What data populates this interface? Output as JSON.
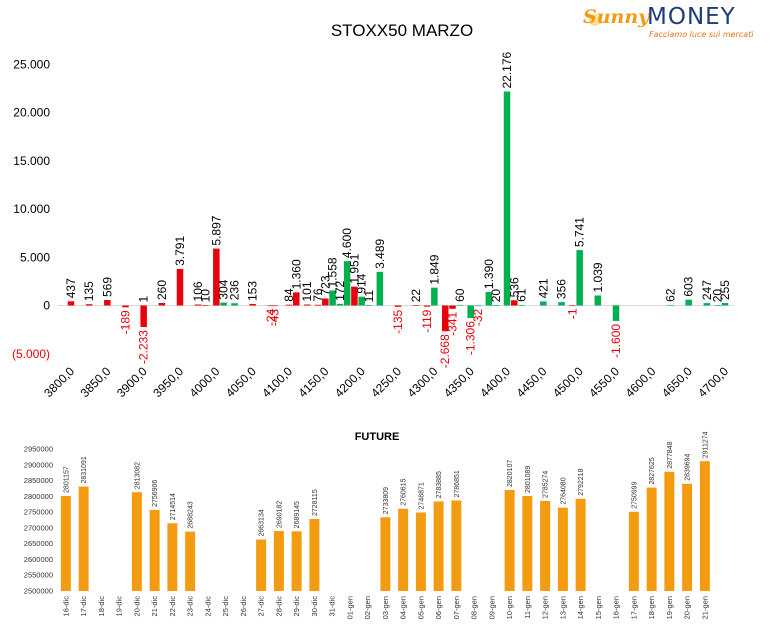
{
  "brand": {
    "name_part1": "Sunny",
    "name_part2": "MONEY",
    "tagline": "Facciamo luce sui mercati",
    "colors": {
      "sun": "#f39c12",
      "money": "#1f3b7a",
      "tagline": "#e2731d"
    }
  },
  "chart_data": [
    {
      "type": "bar",
      "title": "STOXX50 MARZO",
      "xlabel": "",
      "ylabel": "",
      "ylim": [
        -5000,
        25000
      ],
      "y_ticks": [
        "(5.000)",
        "0",
        "5.000",
        "10.000",
        "15.000",
        "20.000",
        "25.000"
      ],
      "y_tick_values": [
        -5000,
        0,
        5000,
        10000,
        15000,
        20000,
        25000
      ],
      "x_range": [
        3800,
        4700
      ],
      "x_ticks": [
        "3800,0",
        "3850,0",
        "3900,0",
        "3950,0",
        "4000,0",
        "4050,0",
        "4100,0",
        "4150,0",
        "4200,0",
        "4250,0",
        "4300,0",
        "4350,0",
        "4400,0",
        "4450,0",
        "4500,0",
        "4550,0",
        "4600,0",
        "4650,0",
        "4700,0"
      ],
      "x_tick_values": [
        3800,
        3850,
        3900,
        3950,
        4000,
        4050,
        4100,
        4150,
        4200,
        4250,
        4300,
        4350,
        4400,
        4450,
        4500,
        4550,
        4600,
        4650,
        4700
      ],
      "grid": false,
      "legend": "none",
      "colors": {
        "call": "#e8000b",
        "put": "#00b050",
        "negative_label": "#e8000b",
        "label": "#000000"
      },
      "series": [
        {
          "color": "#e8000b",
          "values": [
            {
              "x": 3800,
              "y": 437,
              "label": "437"
            },
            {
              "x": 3825,
              "y": 135,
              "label": "135"
            },
            {
              "x": 3850,
              "y": 569,
              "label": "569"
            },
            {
              "x": 3875,
              "y": -189,
              "label": "-189"
            },
            {
              "x": 3900,
              "y": 1,
              "label": "1"
            },
            {
              "x": 3900,
              "y": -2233,
              "label": "-2.233"
            },
            {
              "x": 3925,
              "y": 260,
              "label": "260"
            },
            {
              "x": 3950,
              "y": 3791,
              "label": "3.791"
            },
            {
              "x": 3975,
              "y": 106,
              "label": "106"
            },
            {
              "x": 3985,
              "y": 10,
              "label": "10"
            },
            {
              "x": 4000,
              "y": 5897,
              "label": "5.897"
            },
            {
              "x": 4050,
              "y": 153,
              "label": "153"
            },
            {
              "x": 4075,
              "y": -24,
              "label": "-24"
            },
            {
              "x": 4080,
              "y": -43,
              "label": "-43"
            },
            {
              "x": 4100,
              "y": 84,
              "label": "84"
            },
            {
              "x": 4110,
              "y": 1360,
              "label": "1.360"
            },
            {
              "x": 4125,
              "y": 101,
              "label": "101"
            },
            {
              "x": 4140,
              "y": 76,
              "label": "76"
            },
            {
              "x": 4150,
              "y": 723,
              "label": "723"
            },
            {
              "x": 4190,
              "y": 1951,
              "label": "1.951"
            },
            {
              "x": 4250,
              "y": -135,
              "label": "-135"
            },
            {
              "x": 4275,
              "y": 22,
              "label": "22"
            },
            {
              "x": 4290,
              "y": -119,
              "label": "-119"
            },
            {
              "x": 4315,
              "y": -2668,
              "label": "-2.668"
            },
            {
              "x": 4325,
              "y": -341,
              "label": "-341"
            },
            {
              "x": 4410,
              "y": 536,
              "label": "536"
            },
            {
              "x": 4490,
              "y": -1,
              "label": "-1"
            }
          ]
        },
        {
          "color": "#00b050",
          "values": [
            {
              "x": 4010,
              "y": 304,
              "label": "304"
            },
            {
              "x": 4025,
              "y": 236,
              "label": "236"
            },
            {
              "x": 4160,
              "y": 1558,
              "label": "1.558"
            },
            {
              "x": 4170,
              "y": 172,
              "label": "172"
            },
            {
              "x": 4180,
              "y": 4600,
              "label": "4.600"
            },
            {
              "x": 4200,
              "y": 914,
              "label": "914"
            },
            {
              "x": 4210,
              "y": 11,
              "label": "11"
            },
            {
              "x": 4225,
              "y": 3489,
              "label": "3.489"
            },
            {
              "x": 4300,
              "y": 1849,
              "label": "1.849"
            },
            {
              "x": 4335,
              "y": 60,
              "label": "60"
            },
            {
              "x": 4350,
              "y": -1306,
              "label": "-1.306"
            },
            {
              "x": 4360,
              "y": -32,
              "label": "-32"
            },
            {
              "x": 4375,
              "y": 1390,
              "label": "1.390"
            },
            {
              "x": 4385,
              "y": 20,
              "label": "20"
            },
            {
              "x": 4400,
              "y": 22176,
              "label": "22.176"
            },
            {
              "x": 4420,
              "y": 61,
              "label": "61"
            },
            {
              "x": 4450,
              "y": 421,
              "label": "421"
            },
            {
              "x": 4475,
              "y": 356,
              "label": "356"
            },
            {
              "x": 4500,
              "y": 5741,
              "label": "5.741"
            },
            {
              "x": 4525,
              "y": 1039,
              "label": "1.039"
            },
            {
              "x": 4550,
              "y": -1600,
              "label": "-1.600"
            },
            {
              "x": 4625,
              "y": 62,
              "label": "62"
            },
            {
              "x": 4650,
              "y": 603,
              "label": "603"
            },
            {
              "x": 4675,
              "y": 247,
              "label": "247"
            },
            {
              "x": 4690,
              "y": 20,
              "label": "20"
            },
            {
              "x": 4700,
              "y": 255,
              "label": "255"
            }
          ]
        }
      ]
    },
    {
      "type": "bar",
      "title": "FUTURE",
      "xlabel": "",
      "ylabel": "",
      "ylim": [
        2500000,
        2950000
      ],
      "y_ticks": [
        "2500000",
        "2550000",
        "2600000",
        "2650000",
        "2700000",
        "2750000",
        "2800000",
        "2850000",
        "2900000",
        "2950000"
      ],
      "y_tick_values": [
        2500000,
        2550000,
        2600000,
        2650000,
        2700000,
        2750000,
        2800000,
        2850000,
        2900000,
        2950000
      ],
      "grid": false,
      "legend": "none",
      "colors": {
        "bar": "#f39c12",
        "label": "#333333"
      },
      "categories": [
        "16-dic",
        "17-dic",
        "18-dic",
        "19-dic",
        "20-dic",
        "21-dic",
        "22-dic",
        "23-dic",
        "24-dic",
        "25-dic",
        "26-dic",
        "27-dic",
        "28-dic",
        "29-dic",
        "30-dic",
        "31-dic",
        "01-gen",
        "02-gen",
        "03-gen",
        "04-gen",
        "05-gen",
        "06-gen",
        "07-gen",
        "08-gen",
        "09-gen",
        "10-gen",
        "11-gen",
        "12-gen",
        "13-gen",
        "14-gen",
        "15-gen",
        "16-gen",
        "17-gen",
        "18-gen",
        "19-gen",
        "20-gen",
        "21-gen"
      ],
      "values": [
        2801157,
        2831091,
        null,
        null,
        2813082,
        2756906,
        2714514,
        2688243,
        null,
        null,
        null,
        2663134,
        2690182,
        2689145,
        2728115,
        null,
        null,
        null,
        2733809,
        2760615,
        2748871,
        2783885,
        2786851,
        null,
        null,
        2820107,
        2801089,
        2785274,
        2764080,
        2792218,
        null,
        null,
        2750999,
        2827625,
        2877848,
        2839694,
        2911274
      ],
      "labels": [
        "2801157",
        "2831091",
        "",
        "",
        "2813082",
        "2756906",
        "2714514",
        "2688243",
        "",
        "",
        "",
        "2663134",
        "2690182",
        "2689145",
        "2728115",
        "",
        "",
        "",
        "2733809",
        "2760615",
        "2748871",
        "2783885",
        "2786851",
        "",
        "",
        "2820107",
        "2801089",
        "2785274",
        "2764080",
        "2792218",
        "",
        "",
        "2750999",
        "2827625",
        "2877848",
        "2839694",
        "2911274"
      ]
    }
  ]
}
